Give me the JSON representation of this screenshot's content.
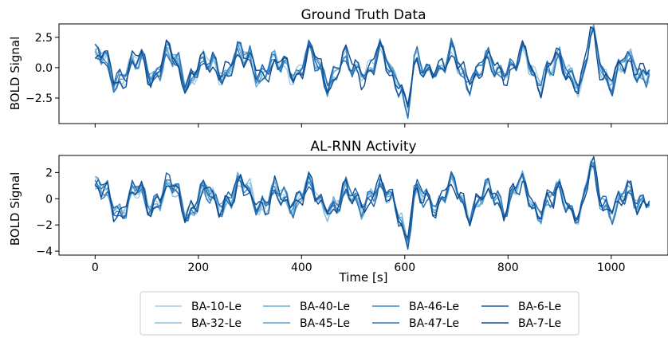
{
  "chart_data": [
    {
      "type": "line",
      "title": "Ground Truth Data",
      "ylabel": "BOLD Signal",
      "xlabel": "",
      "xlim": [
        -70,
        1110
      ],
      "ylim": [
        -4.6,
        3.6
      ],
      "xticks": [
        0,
        200,
        400,
        600,
        800,
        1000
      ],
      "xtick_labels": [
        "",
        "",
        "",
        "",
        "",
        ""
      ],
      "yticks": [
        2.5,
        0.0,
        -2.5
      ],
      "ytick_labels": [
        "2.5",
        "0.0",
        "−2.5"
      ],
      "x_range": [
        0,
        1078
      ],
      "grid": false
    },
    {
      "type": "line",
      "title": "AL-RNN Activity",
      "ylabel": "BOLD Signal",
      "xlabel": "Time [s]",
      "xlim": [
        -70,
        1110
      ],
      "ylim": [
        -4.3,
        3.3
      ],
      "xticks": [
        0,
        200,
        400,
        600,
        800,
        1000
      ],
      "xtick_labels": [
        "0",
        "200",
        "400",
        "600",
        "800",
        "1000"
      ],
      "yticks": [
        2,
        0,
        -2,
        -4
      ],
      "ytick_labels": [
        "2",
        "0",
        "−2",
        "−4"
      ],
      "x_range": [
        0,
        1078
      ],
      "grid": false
    }
  ],
  "series": [
    {
      "name": "BA-10-Le",
      "color": "#a6cde6"
    },
    {
      "name": "BA-32-Le",
      "color": "#8fc0e0"
    },
    {
      "name": "BA-40-Le",
      "color": "#6baed6"
    },
    {
      "name": "BA-45-Le",
      "color": "#5a9fcf"
    },
    {
      "name": "BA-46-Le",
      "color": "#3b86c2"
    },
    {
      "name": "BA-47-Le",
      "color": "#2b73b6"
    },
    {
      "name": "BA-6-Le",
      "color": "#1c5ea5"
    },
    {
      "name": "BA-7-Le",
      "color": "#0f4c8e"
    }
  ],
  "legend": {
    "placement": "bottom-center",
    "columns": 4
  }
}
